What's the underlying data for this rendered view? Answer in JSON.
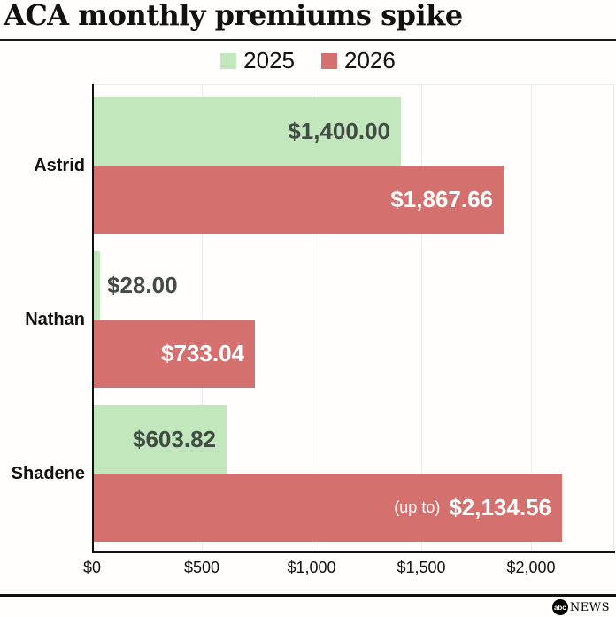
{
  "header": {
    "title": "ACA monthly premiums spike"
  },
  "legend": {
    "items": [
      {
        "label": "2025",
        "color": "#c3e7bc"
      },
      {
        "label": "2026",
        "color": "#d4716f"
      }
    ]
  },
  "chart_data": {
    "type": "bar",
    "orientation": "horizontal",
    "title": "ACA monthly premiums spike",
    "categories": [
      "Astrid",
      "Nathan",
      "Shadene"
    ],
    "series": [
      {
        "name": "2025",
        "color": "#c3e7bc",
        "values": [
          1400.0,
          28.0,
          603.82
        ],
        "value_labels": [
          "$1,400.00",
          "$28.00",
          "$603.82"
        ],
        "label_prefixes": [
          "",
          "",
          ""
        ]
      },
      {
        "name": "2026",
        "color": "#d4716f",
        "values": [
          1867.66,
          733.04,
          2134.56
        ],
        "value_labels": [
          "$1,867.66",
          "$733.04",
          "$2,134.56"
        ],
        "label_prefixes": [
          "",
          "",
          "(up to)"
        ]
      }
    ],
    "x_ticks": [
      {
        "label": "$0",
        "value": 0
      },
      {
        "label": "$500",
        "value": 500
      },
      {
        "label": "$1,000",
        "value": 1000
      },
      {
        "label": "$1,500",
        "value": 1500
      },
      {
        "label": "$2,000",
        "value": 2000
      }
    ],
    "xlim": [
      0,
      2380
    ],
    "grid": true,
    "legend_position": "top",
    "colors": {
      "green_label_text": "#434b47",
      "red_label_text": "#ffffff",
      "outside_label_text": "#434b47",
      "axis": "#111111",
      "gridline": "#ececec",
      "tick_text": "#111111",
      "category_text": "#111111"
    }
  },
  "footer": {
    "logo_abc": "abc",
    "logo_news": "NEWS"
  }
}
